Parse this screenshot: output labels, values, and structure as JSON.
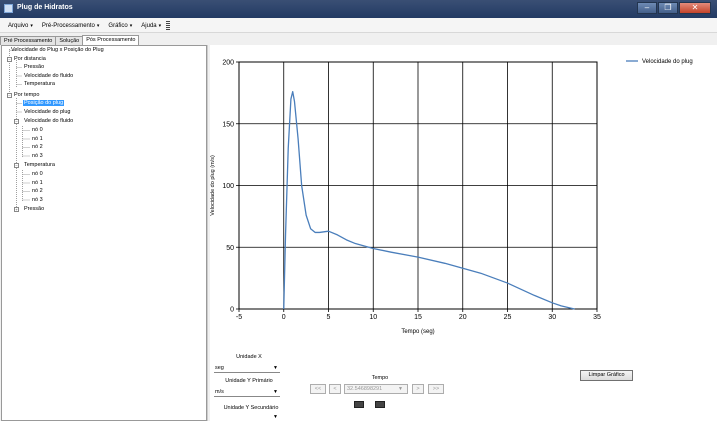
{
  "window": {
    "title": "Plug de Hidratos",
    "min": "–",
    "max": "❐",
    "close": "✕"
  },
  "menu": [
    {
      "label": "Arquivo"
    },
    {
      "label": "Pré-Processamento"
    },
    {
      "label": "Gráfico"
    },
    {
      "label": "Ajuda"
    }
  ],
  "tabs": [
    "Pré Processamento",
    "Solução",
    "Pós Processamento"
  ],
  "tree": {
    "root1": "Velocidade do Plug x Posição do Plug",
    "por_distancia": "Por distancia",
    "pd_items": [
      "Pressão",
      "Velocidade do fluido",
      "Temperatura"
    ],
    "por_tempo": "Por tempo",
    "pt_posicao": "Posição do plug",
    "pt_velplug": "Velocidade do plug",
    "pt_velfluido": "Velocidade do fluido",
    "vf_nodes": [
      "nó 0",
      "nó 1",
      "nó 2",
      "nó 3"
    ],
    "pt_temperatura": "Temperatura",
    "t_nodes": [
      "nó 0",
      "nó 1",
      "nó 2",
      "nó 3"
    ],
    "pt_pressao": "Pressão",
    "minus": "−",
    "plus": "+"
  },
  "chart_data": {
    "type": "line",
    "xlabel": "Tempo (seg)",
    "ylabel": "Velocidade do plug (m/s)",
    "xlim": [
      -5,
      35
    ],
    "ylim": [
      0,
      200
    ],
    "xticks": [
      -5,
      0,
      5,
      10,
      15,
      20,
      25,
      30,
      35
    ],
    "yticks": [
      0,
      50,
      100,
      150,
      200
    ],
    "grid": true,
    "legend_position": "top-right",
    "series": [
      {
        "name": "Velocidade do plug",
        "color": "#4a7ebb",
        "x": [
          0,
          0.2,
          0.5,
          0.8,
          1.0,
          1.2,
          1.6,
          2.0,
          2.5,
          3.0,
          3.5,
          4.0,
          5.0,
          6.0,
          7.0,
          8.0,
          10.0,
          12.0,
          15.0,
          18.0,
          20.0,
          22.0,
          25.0,
          28.0,
          30.0,
          31.0,
          32.0,
          32.5
        ],
        "y": [
          0,
          60,
          130,
          170,
          176,
          168,
          138,
          100,
          76,
          65,
          62,
          62,
          63,
          60,
          56,
          53,
          49,
          46,
          42,
          37,
          33,
          29,
          21,
          11,
          5,
          2.5,
          0.8,
          0
        ]
      }
    ]
  },
  "controls": {
    "unidade_x_label": "Unidade X",
    "unidade_x_value": "seg",
    "unidade_y1_label": "Unidade Y Primário",
    "unidade_y1_value": "m/s",
    "unidade_y2_label": "Unidade Y Secundário",
    "unidade_y2_value": "",
    "tempo_label": "Tempo",
    "tempo_value": "32.546898291",
    "first_btn": "<<",
    "prev_btn": "<",
    "next_btn": ">",
    "last_btn": ">>",
    "limpar_label": "Limpar Gráfico",
    "combo_arrow": "▼"
  }
}
